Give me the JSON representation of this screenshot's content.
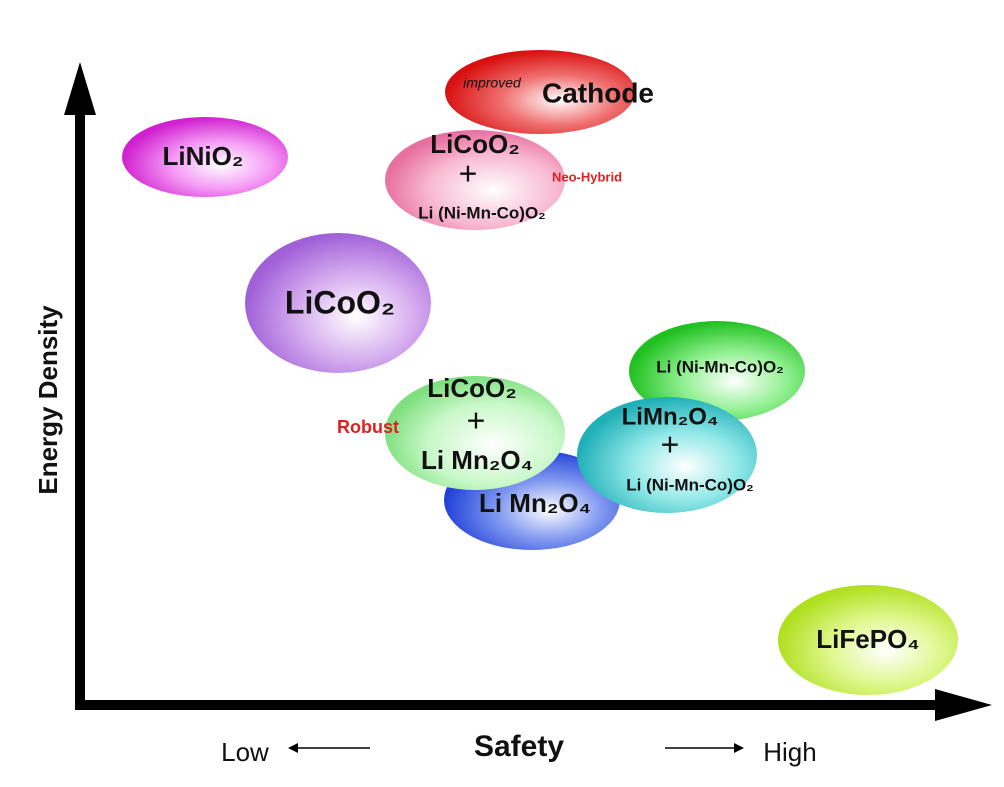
{
  "axes": {
    "y_label": "Energy Density",
    "x_label": "Safety",
    "x_low": "Low",
    "x_high": "High"
  },
  "nodes": [
    {
      "lines": [
        "LiNiO₂"
      ]
    },
    {
      "prefix": "improved",
      "lines": [
        "Cathode"
      ]
    },
    {
      "lines": [
        "LiCoO₂",
        "+",
        "Li (Ni-Mn-Co)O₂"
      ],
      "note": "Neo-Hybrid"
    },
    {
      "lines": [
        "LiCoO₂"
      ]
    },
    {
      "lines": [
        "Li (Ni-Mn-Co)O₂"
      ]
    },
    {
      "lines": [
        "Li Mn₂O₄"
      ]
    },
    {
      "lines": [
        "LiCoO₂",
        "+",
        "Li Mn₂O₄"
      ],
      "note": "Robust"
    },
    {
      "lines": [
        "LiMn₂O₄",
        "+",
        "Li (Ni-Mn-Co)O₂"
      ]
    },
    {
      "lines": [
        "LiFePO₄"
      ]
    }
  ]
}
